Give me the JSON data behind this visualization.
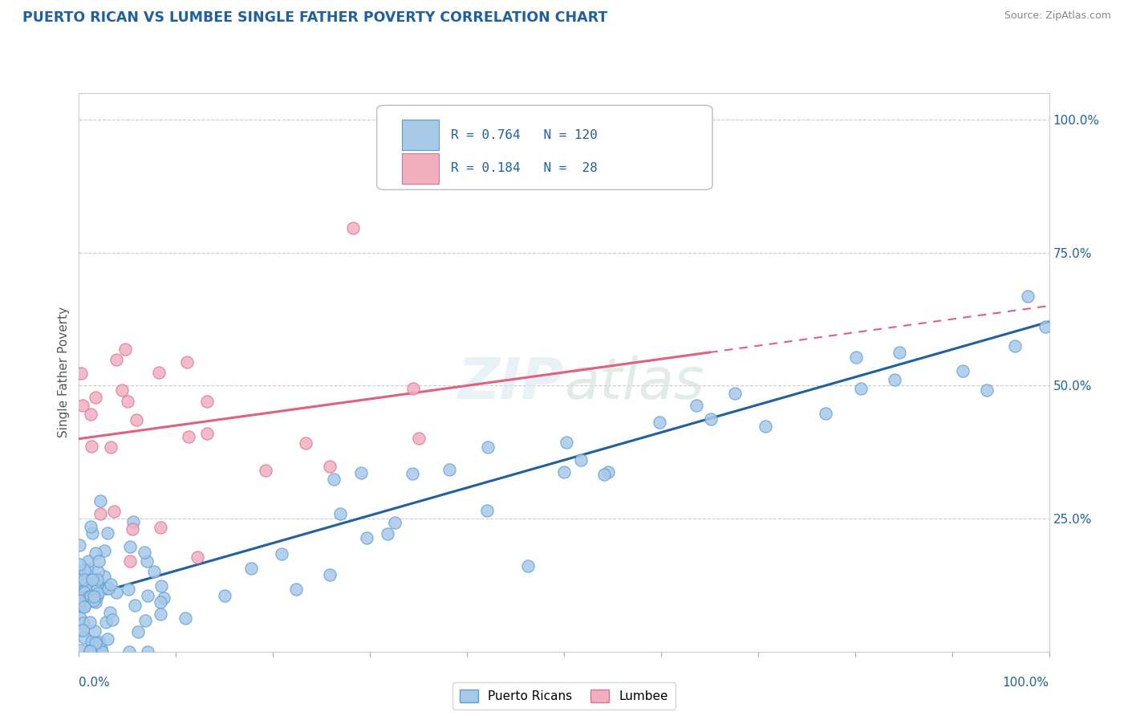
{
  "title": "PUERTO RICAN VS LUMBEE SINGLE FATHER POVERTY CORRELATION CHART",
  "source": "Source: ZipAtlas.com",
  "ylabel": "Single Father Poverty",
  "legend_puerto_rico": "Puerto Ricans",
  "legend_lumbee": "Lumbee",
  "r_puerto_rico": "0.764",
  "n_puerto_rico": "120",
  "r_lumbee": "0.184",
  "n_lumbee": "28",
  "color_blue_fill": "#a8c8e8",
  "color_blue_edge": "#5a9fd4",
  "color_blue_line": "#2060a0",
  "color_pink_fill": "#f0b0c0",
  "color_pink_edge": "#e07090",
  "color_pink_line": "#e06080",
  "blue_line_intercept": 0.1,
  "blue_line_slope": 0.52,
  "pink_line_intercept": 0.4,
  "pink_line_slope": 0.25,
  "watermark": "ZIPatlas",
  "background_color": "#ffffff",
  "grid_color": "#cccccc",
  "ytick_positions": [
    0.25,
    0.5,
    0.75,
    1.0
  ],
  "ytick_labels": [
    "25.0%",
    "50.0%",
    "75.0%",
    "100.0%"
  ],
  "title_color": "#2060a0",
  "source_color": "#888888",
  "axis_label_color": "#555555"
}
